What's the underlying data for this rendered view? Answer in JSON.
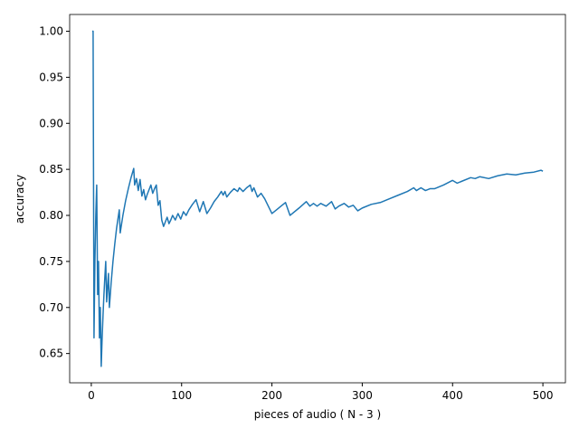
{
  "chart_data": {
    "type": "line",
    "x_label": "pieces of audio ( N - 3 )",
    "y_label": "accuracy",
    "x": [
      1,
      2,
      3,
      4,
      5,
      6,
      7,
      8,
      9,
      10,
      11,
      12,
      13,
      14,
      15,
      16,
      17,
      18,
      19,
      20,
      22,
      24,
      26,
      28,
      31,
      32,
      35,
      38,
      41,
      44,
      47,
      48,
      50,
      52,
      54,
      56,
      58,
      60,
      62,
      64,
      66,
      68,
      70,
      72,
      74,
      76,
      78,
      80,
      82,
      84,
      86,
      88,
      90,
      93,
      96,
      99,
      102,
      105,
      108,
      112,
      116,
      120,
      124,
      128,
      132,
      136,
      140,
      144,
      146,
      148,
      150,
      154,
      158,
      162,
      164,
      168,
      172,
      176,
      178,
      180,
      184,
      188,
      192,
      196,
      200,
      205,
      210,
      215,
      220,
      230,
      238,
      242,
      246,
      250,
      254,
      260,
      266,
      270,
      274,
      280,
      285,
      290,
      295,
      300,
      310,
      320,
      330,
      340,
      350,
      357,
      360,
      365,
      370,
      375,
      380,
      390,
      400,
      405,
      410,
      420,
      425,
      430,
      440,
      450,
      460,
      470,
      480,
      490,
      498,
      500
    ],
    "series": [
      {
        "color": "#1f77b4",
        "values": [
          1.0,
          1.0,
          0.667,
          0.75,
          0.8,
          0.833,
          0.714,
          0.75,
          0.667,
          0.7,
          0.636,
          0.667,
          0.692,
          0.714,
          0.733,
          0.75,
          0.706,
          0.722,
          0.737,
          0.7,
          0.727,
          0.75,
          0.769,
          0.786,
          0.806,
          0.781,
          0.8,
          0.816,
          0.829,
          0.841,
          0.851,
          0.833,
          0.84,
          0.827,
          0.839,
          0.821,
          0.828,
          0.817,
          0.823,
          0.828,
          0.833,
          0.824,
          0.829,
          0.833,
          0.811,
          0.816,
          0.795,
          0.788,
          0.793,
          0.798,
          0.791,
          0.795,
          0.8,
          0.795,
          0.802,
          0.796,
          0.804,
          0.8,
          0.806,
          0.812,
          0.817,
          0.804,
          0.815,
          0.802,
          0.808,
          0.815,
          0.82,
          0.826,
          0.822,
          0.826,
          0.82,
          0.825,
          0.829,
          0.826,
          0.83,
          0.826,
          0.83,
          0.833,
          0.826,
          0.83,
          0.82,
          0.824,
          0.818,
          0.81,
          0.802,
          0.806,
          0.81,
          0.814,
          0.8,
          0.808,
          0.815,
          0.81,
          0.813,
          0.81,
          0.813,
          0.81,
          0.815,
          0.807,
          0.81,
          0.813,
          0.809,
          0.811,
          0.805,
          0.808,
          0.812,
          0.814,
          0.818,
          0.822,
          0.826,
          0.83,
          0.827,
          0.83,
          0.827,
          0.829,
          0.829,
          0.833,
          0.838,
          0.835,
          0.837,
          0.841,
          0.84,
          0.842,
          0.84,
          0.843,
          0.845,
          0.844,
          0.846,
          0.847,
          0.849,
          0.848
        ]
      }
    ],
    "xlim": [
      -23.95,
      524.95
    ],
    "ylim": [
      0.6182,
      1.0182
    ],
    "xticks": [
      0,
      100,
      200,
      300,
      400,
      500
    ],
    "yticks": [
      0.65,
      {
        "value": 0.7,
        "label": "0.70"
      },
      0.75,
      {
        "value": 0.8,
        "label": "0.80"
      },
      0.85,
      {
        "value": 0.9,
        "label": "0.90"
      },
      0.95,
      {
        "value": 1.0,
        "label": "1.00"
      }
    ]
  }
}
